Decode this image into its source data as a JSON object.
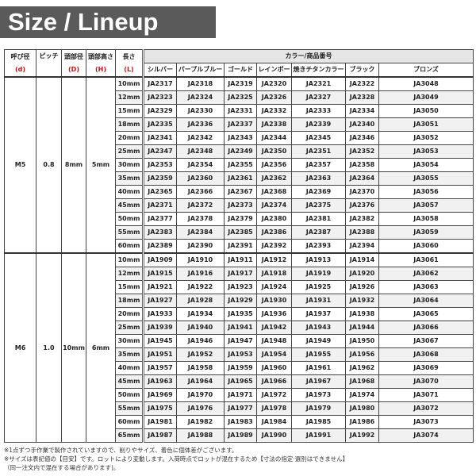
{
  "title": "Size / Lineup",
  "headers": {
    "nominal": "呼び径",
    "nominal_sym": "(d)",
    "pitch": "ピッチ",
    "head_dia": "頭部径",
    "head_dia_sym": "(D)",
    "head_height": "頭部高さ",
    "head_height_sym": "(H)",
    "length": "長さ",
    "length_sym": "(L)",
    "color_group": "カラー/商品番号",
    "colors": [
      "シルバー",
      "パープルブルー",
      "ゴールド",
      "レインボー",
      "焼きチタンカラー",
      "ブラック",
      "ブロンズ"
    ]
  },
  "groups": [
    {
      "nominal": "M5",
      "pitch": "0.8",
      "head_dia": "8mm",
      "head_height": "5mm",
      "rows": [
        [
          "10mm",
          "JA2317",
          "JA2318",
          "JA2319",
          "JA2320",
          "JA2321",
          "JA2322",
          "JA3048"
        ],
        [
          "12mm",
          "JA2323",
          "JA2324",
          "JA2325",
          "JA2326",
          "JA2327",
          "JA2328",
          "JA3049"
        ],
        [
          "15mm",
          "JA2329",
          "JA2330",
          "JA2331",
          "JA2332",
          "JA2333",
          "JA2334",
          "JA3050"
        ],
        [
          "18mm",
          "JA2335",
          "JA2336",
          "JA2337",
          "JA2338",
          "JA2339",
          "JA2340",
          "JA3051"
        ],
        [
          "20mm",
          "JA2341",
          "JA2342",
          "JA2343",
          "JA2344",
          "JA2345",
          "JA2346",
          "JA3052"
        ],
        [
          "25mm",
          "JA2347",
          "JA2348",
          "JA2349",
          "JA2350",
          "JA2351",
          "JA2352",
          "JA3053"
        ],
        [
          "30mm",
          "JA2353",
          "JA2354",
          "JA2355",
          "JA2356",
          "JA2357",
          "JA2358",
          "JA3054"
        ],
        [
          "35mm",
          "JA2359",
          "JA2360",
          "JA2361",
          "JA2362",
          "JA2363",
          "JA2364",
          "JA3055"
        ],
        [
          "40mm",
          "JA2365",
          "JA2366",
          "JA2367",
          "JA2368",
          "JA2369",
          "JA2370",
          "JA3056"
        ],
        [
          "45mm",
          "JA2371",
          "JA2372",
          "JA2373",
          "JA2374",
          "JA2375",
          "JA2376",
          "JA3057"
        ],
        [
          "50mm",
          "JA2377",
          "JA2378",
          "JA2379",
          "JA2380",
          "JA2381",
          "JA2382",
          "JA3058"
        ],
        [
          "55mm",
          "JA2383",
          "JA2384",
          "JA2385",
          "JA2386",
          "JA2387",
          "JA2388",
          "JA3059"
        ],
        [
          "60mm",
          "JA2389",
          "JA2390",
          "JA2391",
          "JA2392",
          "JA2393",
          "JA2394",
          "JA3060"
        ]
      ]
    },
    {
      "nominal": "M6",
      "pitch": "1.0",
      "head_dia": "10mm",
      "head_height": "6mm",
      "rows": [
        [
          "10mm",
          "JA1909",
          "JA1910",
          "JA1911",
          "JA1912",
          "JA1913",
          "JA1914",
          "JA3061"
        ],
        [
          "12mm",
          "JA1915",
          "JA1916",
          "JA1917",
          "JA1918",
          "JA1919",
          "JA1920",
          "JA3062"
        ],
        [
          "15mm",
          "JA1921",
          "JA1922",
          "JA1923",
          "JA1924",
          "JA1925",
          "JA1926",
          "JA3063"
        ],
        [
          "18mm",
          "JA1927",
          "JA1928",
          "JA1929",
          "JA1930",
          "JA1931",
          "JA1932",
          "JA3064"
        ],
        [
          "20mm",
          "JA1933",
          "JA1934",
          "JA1935",
          "JA1936",
          "JA1937",
          "JA1938",
          "JA3065"
        ],
        [
          "25mm",
          "JA1939",
          "JA1940",
          "JA1941",
          "JA1942",
          "JA1943",
          "JA1944",
          "JA3066"
        ],
        [
          "30mm",
          "JA1945",
          "JA1946",
          "JA1947",
          "JA1948",
          "JA1949",
          "JA1950",
          "JA3067"
        ],
        [
          "35mm",
          "JA1951",
          "JA1952",
          "JA1953",
          "JA1954",
          "JA1955",
          "JA1956",
          "JA3068"
        ],
        [
          "40mm",
          "JA1957",
          "JA1958",
          "JA1959",
          "JA1960",
          "JA1961",
          "JA1962",
          "JA3069"
        ],
        [
          "45mm",
          "JA1963",
          "JA1964",
          "JA1965",
          "JA1966",
          "JA1967",
          "JA1968",
          "JA3070"
        ],
        [
          "50mm",
          "JA1969",
          "JA1970",
          "JA1971",
          "JA1972",
          "JA1973",
          "JA1974",
          "JA3071"
        ],
        [
          "55mm",
          "JA1975",
          "JA1976",
          "JA1977",
          "JA1978",
          "JA1979",
          "JA1980",
          "JA3072"
        ],
        [
          "60mm",
          "JA1981",
          "JA1982",
          "JA1983",
          "JA1984",
          "JA1985",
          "JA1986",
          "JA3073"
        ],
        [
          "65mm",
          "JA1987",
          "JA1988",
          "JA1989",
          "JA1990",
          "JA1991",
          "JA1992",
          "JA3074"
        ]
      ]
    }
  ],
  "notes": [
    "※1点ずつ手作業で製作されていますので、削りやサイズ、着色に個体差がございます。",
    "※サイズは表記値の【目安】です。ロットにより変動します。入荷時点でロットが混在するため【寸法の指定·選別はできません】",
    "（同一注文内で混在する場合があります)。"
  ],
  "colors": {
    "title_bg": "#5a5a5a",
    "header_symbol": "#d01010",
    "color_header_bg": "#e6e6e6"
  }
}
